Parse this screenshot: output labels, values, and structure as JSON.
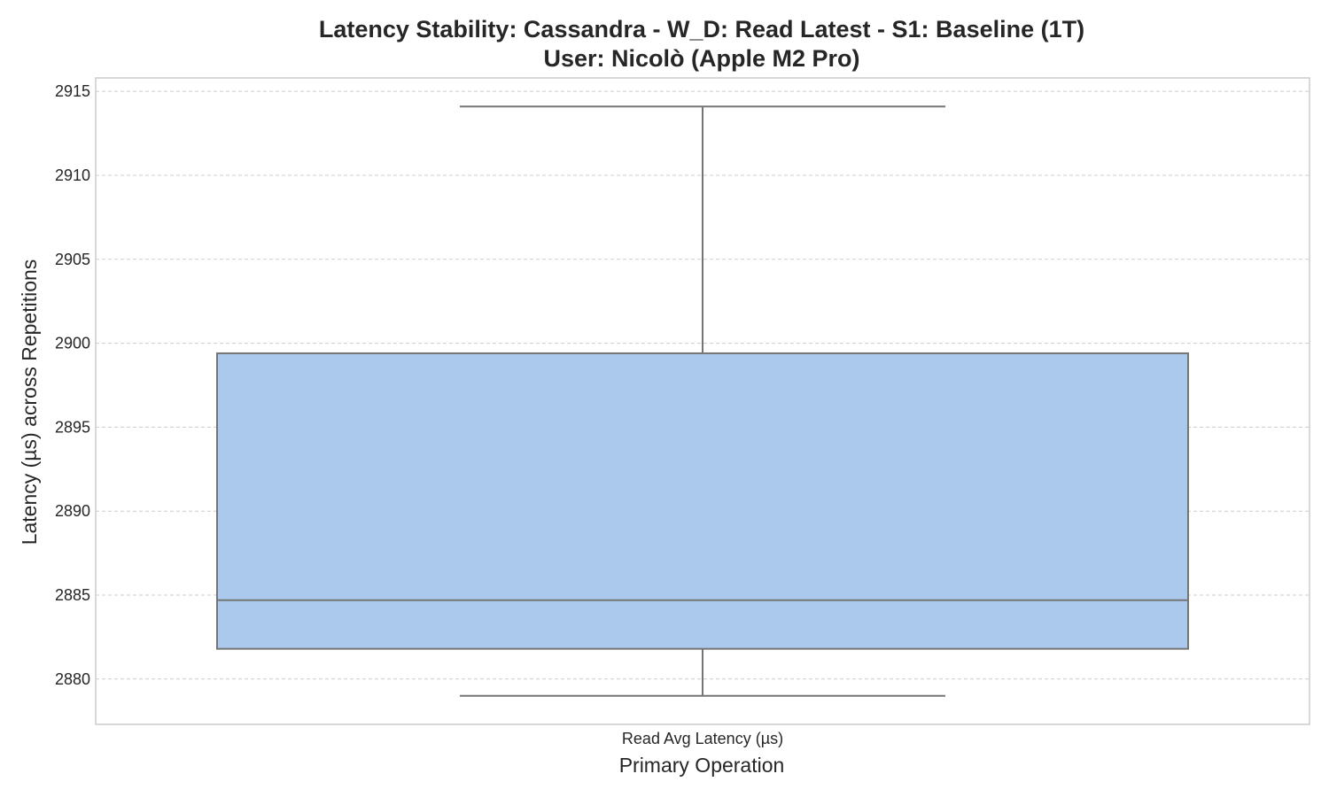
{
  "chart_data": {
    "type": "box",
    "title": "Latency Stability: Cassandra - W_D: Read Latest - S1: Baseline (1T)",
    "subtitle": "User: Nicolò (Apple M2 Pro)",
    "xlabel": "Primary Operation",
    "ylabel": "Latency (µs) across Repetitions",
    "categories": [
      "Read Avg Latency (µs)"
    ],
    "ylim": [
      2877.3,
      2915.8
    ],
    "yticks": [
      2880,
      2885,
      2890,
      2895,
      2900,
      2905,
      2910,
      2915
    ],
    "grid": true,
    "boxes": [
      {
        "category": "Read Avg Latency (µs)",
        "whisker_low": 2879.0,
        "q1": 2881.8,
        "median": 2884.7,
        "q3": 2899.4,
        "whisker_high": 2914.1,
        "color": "#abc9ec"
      }
    ],
    "line_color": "#757575"
  }
}
